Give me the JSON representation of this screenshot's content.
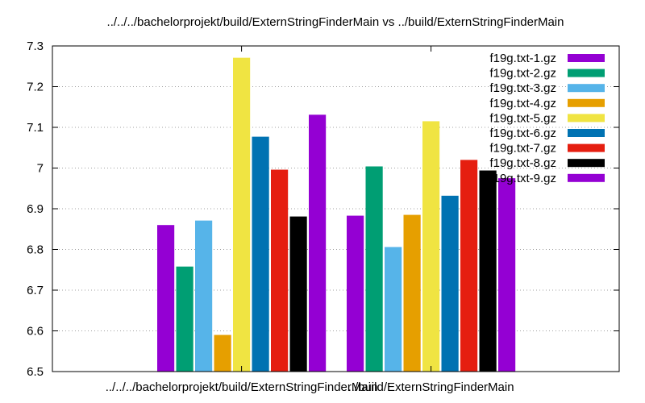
{
  "chart_data": {
    "type": "bar",
    "title": "../../../bachelorprojekt/build/ExternStringFinderMain vs ../build/ExternStringFinderMain",
    "categories": [
      "../../../bachelorprojekt/build/ExternStringFinderMain",
      "../build/ExternStringFinderMain"
    ],
    "series": [
      {
        "name": "f19g.txt-1.gz",
        "color": "#9400d3",
        "values": [
          6.86,
          6.883
        ]
      },
      {
        "name": "f19g.txt-2.gz",
        "color": "#009e73",
        "values": [
          6.758,
          7.004
        ]
      },
      {
        "name": "f19g.txt-3.gz",
        "color": "#56b4e9",
        "values": [
          6.871,
          6.806
        ]
      },
      {
        "name": "f19g.txt-4.gz",
        "color": "#e69f00",
        "values": [
          6.59,
          6.885
        ]
      },
      {
        "name": "f19g.txt-5.gz",
        "color": "#f0e442",
        "values": [
          7.271,
          7.115
        ]
      },
      {
        "name": "f19g.txt-6.gz",
        "color": "#0072b2",
        "values": [
          7.077,
          6.932
        ]
      },
      {
        "name": "f19g.txt-7.gz",
        "color": "#e51e10",
        "values": [
          6.996,
          7.02
        ]
      },
      {
        "name": "f19g.txt-8.gz",
        "color": "#000000",
        "values": [
          6.881,
          6.994
        ]
      },
      {
        "name": "f19g.txt-9.gz",
        "color": "#9400d3",
        "values": [
          7.131,
          6.975
        ]
      }
    ],
    "ylim": [
      6.5,
      7.3
    ],
    "yticks": [
      6.5,
      6.6,
      6.7,
      6.8,
      6.9,
      7.0,
      7.1,
      7.2,
      7.3
    ],
    "ytick_labels": [
      "6.5",
      "6.6",
      "6.7",
      "6.8",
      "6.9",
      "7",
      "7.1",
      "7.2",
      "7.3"
    ],
    "xlabel": "",
    "ylabel": "",
    "grid": "horizontal dotted",
    "legend_position": "top-right"
  }
}
